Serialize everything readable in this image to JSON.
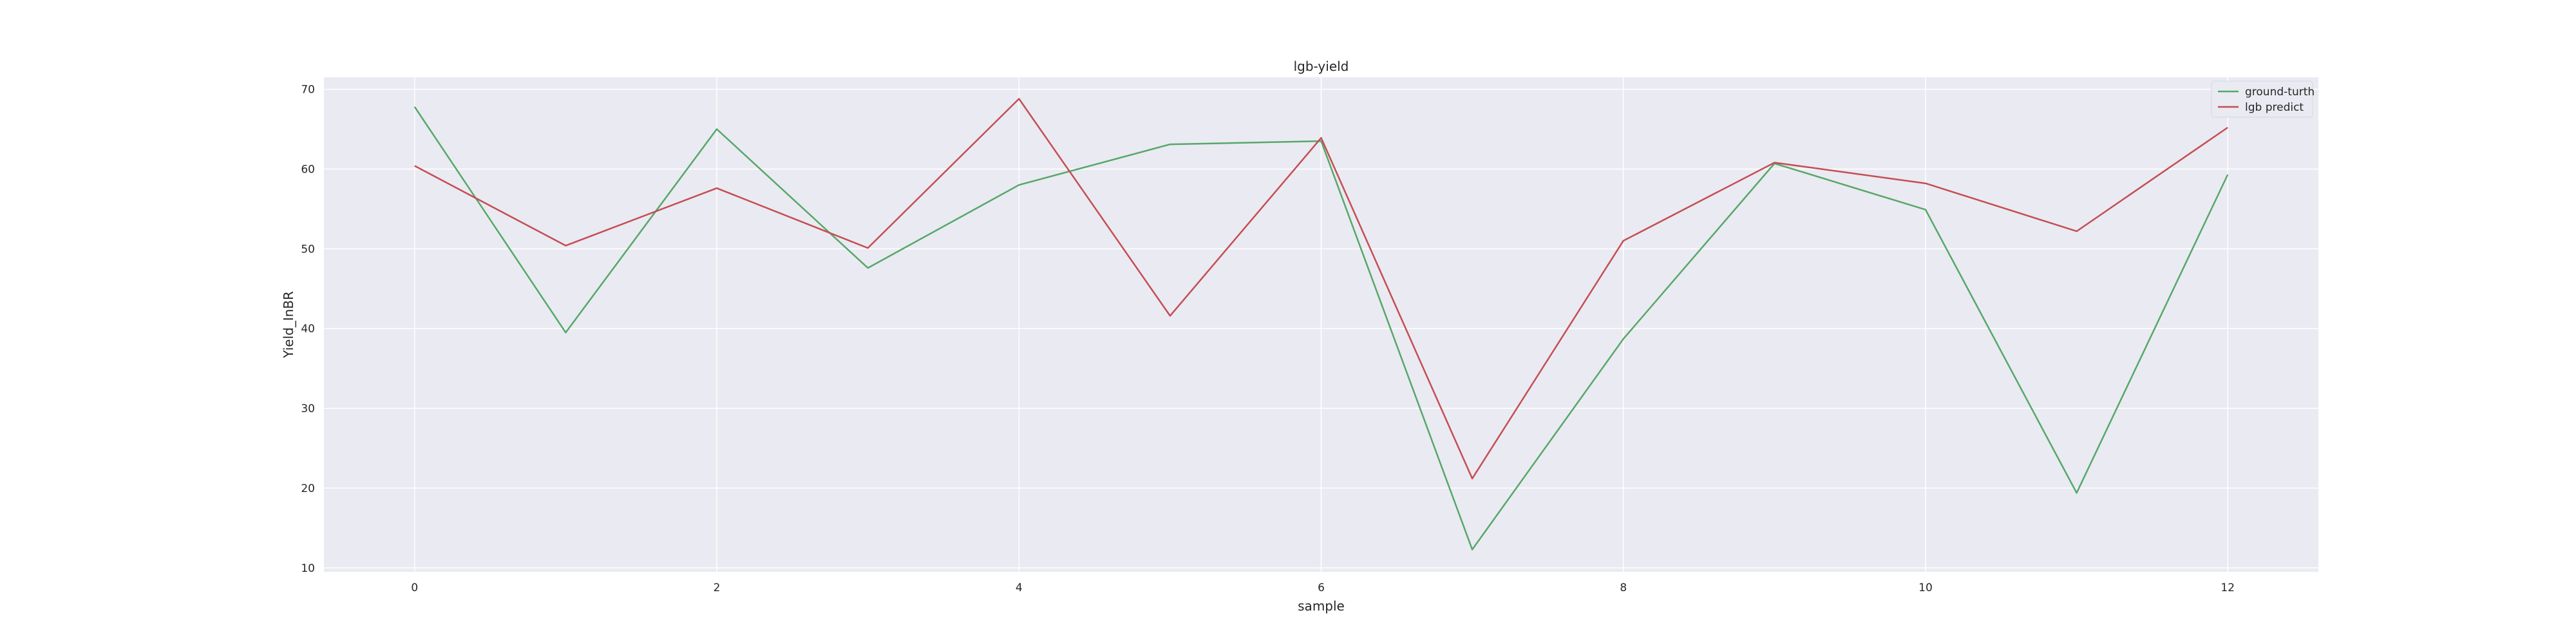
{
  "chart_data": {
    "type": "line",
    "title": "lgb-yield",
    "xlabel": "sample",
    "ylabel": "Yield_InBR",
    "xlim": [
      -0.6,
      12.6
    ],
    "ylim": [
      9.5,
      71.5
    ],
    "xticks": [
      0,
      2,
      4,
      6,
      8,
      10,
      12
    ],
    "yticks": [
      10,
      20,
      30,
      40,
      50,
      60,
      70
    ],
    "grid": true,
    "legend_position": "top-right",
    "x": [
      0,
      1,
      2,
      3,
      4,
      5,
      6,
      7,
      8,
      9,
      10,
      11,
      12
    ],
    "series": [
      {
        "name": "ground-turth",
        "color": "#55a868",
        "values": [
          67.8,
          39.5,
          65.0,
          47.6,
          58.0,
          63.1,
          63.5,
          12.3,
          38.7,
          60.7,
          54.9,
          19.4,
          59.3
        ]
      },
      {
        "name": "lgb predict",
        "color": "#c44e52",
        "values": [
          60.4,
          50.4,
          57.6,
          50.1,
          68.8,
          41.6,
          63.9,
          21.2,
          51.0,
          60.8,
          58.2,
          52.2,
          65.2
        ]
      }
    ],
    "colors": {
      "plot_background": "#eaeaf2",
      "grid": "#ffffff"
    }
  }
}
